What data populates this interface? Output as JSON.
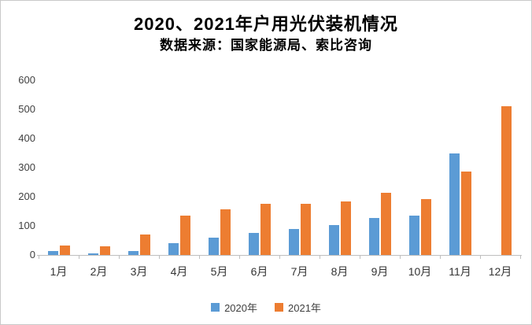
{
  "header": {
    "title": "2020、2021年户用光伏装机情况",
    "subtitle": "数据来源：国家能源局、索比咨询"
  },
  "chart_data": {
    "type": "bar",
    "title": "2020、2021年户用光伏装机情况",
    "subtitle": "数据来源：国家能源局、索比咨询",
    "categories": [
      "1月",
      "2月",
      "3月",
      "4月",
      "5月",
      "6月",
      "7月",
      "8月",
      "9月",
      "10月",
      "11月",
      "12月"
    ],
    "series": [
      {
        "name": "2020年",
        "color": "#5B9BD5",
        "values": [
          13,
          5,
          14,
          40,
          60,
          77,
          89,
          102,
          127,
          135,
          350,
          0
        ]
      },
      {
        "name": "2021年",
        "color": "#ED7D31",
        "values": [
          33,
          30,
          69,
          134,
          156,
          175,
          177,
          185,
          213,
          192,
          286,
          510
        ]
      }
    ],
    "ylim": [
      0,
      600
    ],
    "yticks": [
      0,
      100,
      200,
      300,
      400,
      500,
      600
    ],
    "xlabel": "",
    "ylabel": "",
    "grid": false,
    "legend_position": "bottom",
    "axis_color": "#BFBFBF",
    "text_color": "#404040"
  }
}
